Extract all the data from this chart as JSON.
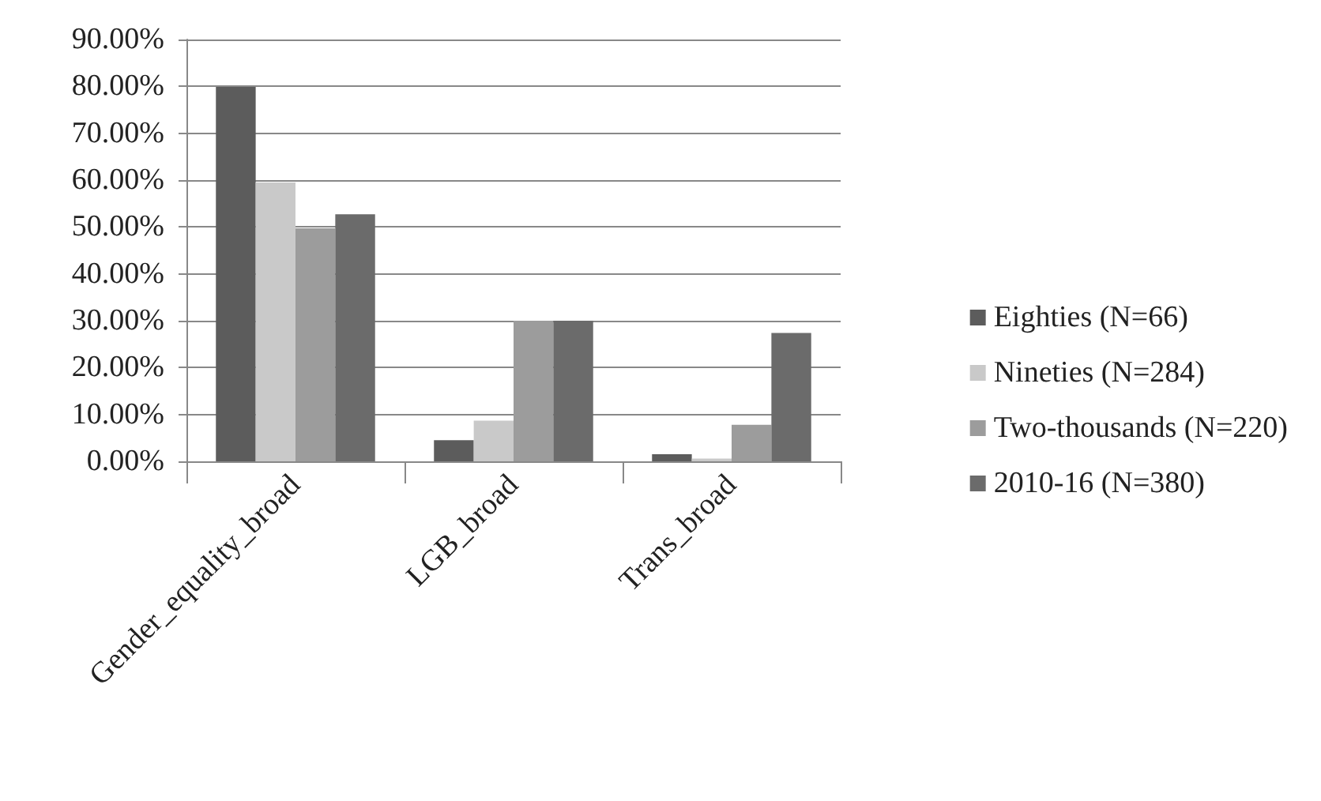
{
  "chart_data": {
    "type": "bar",
    "categories": [
      "Gender_equality_broad",
      "LGB_broad",
      "Trans_broad"
    ],
    "series": [
      {
        "name": "Eighties (N=66)",
        "color": "#5c5c5c",
        "values": [
          79.9,
          4.5,
          1.5
        ]
      },
      {
        "name": "Nineties (N=284)",
        "color": "#c9c9c9",
        "values": [
          59.5,
          8.7,
          0.6
        ]
      },
      {
        "name": "Two-thousands (N=220)",
        "color": "#9c9c9c",
        "values": [
          49.7,
          30.0,
          7.8
        ]
      },
      {
        "name": "2010-16 (N=380)",
        "color": "#6b6b6b",
        "values": [
          52.7,
          30.0,
          27.4
        ]
      }
    ],
    "ylim": [
      0,
      90
    ],
    "yticks": [
      {
        "value": 0,
        "label": "0.00%"
      },
      {
        "value": 10,
        "label": "10.00%"
      },
      {
        "value": 20,
        "label": "20.00%"
      },
      {
        "value": 30,
        "label": "30.00%"
      },
      {
        "value": 40,
        "label": "40.00%"
      },
      {
        "value": 50,
        "label": "50.00%"
      },
      {
        "value": 60,
        "label": "60.00%"
      },
      {
        "value": 70,
        "label": "70.00%"
      },
      {
        "value": 80,
        "label": "80.00%"
      },
      {
        "value": 90,
        "label": "90.00%"
      }
    ],
    "grid": "y",
    "legend": "right"
  }
}
